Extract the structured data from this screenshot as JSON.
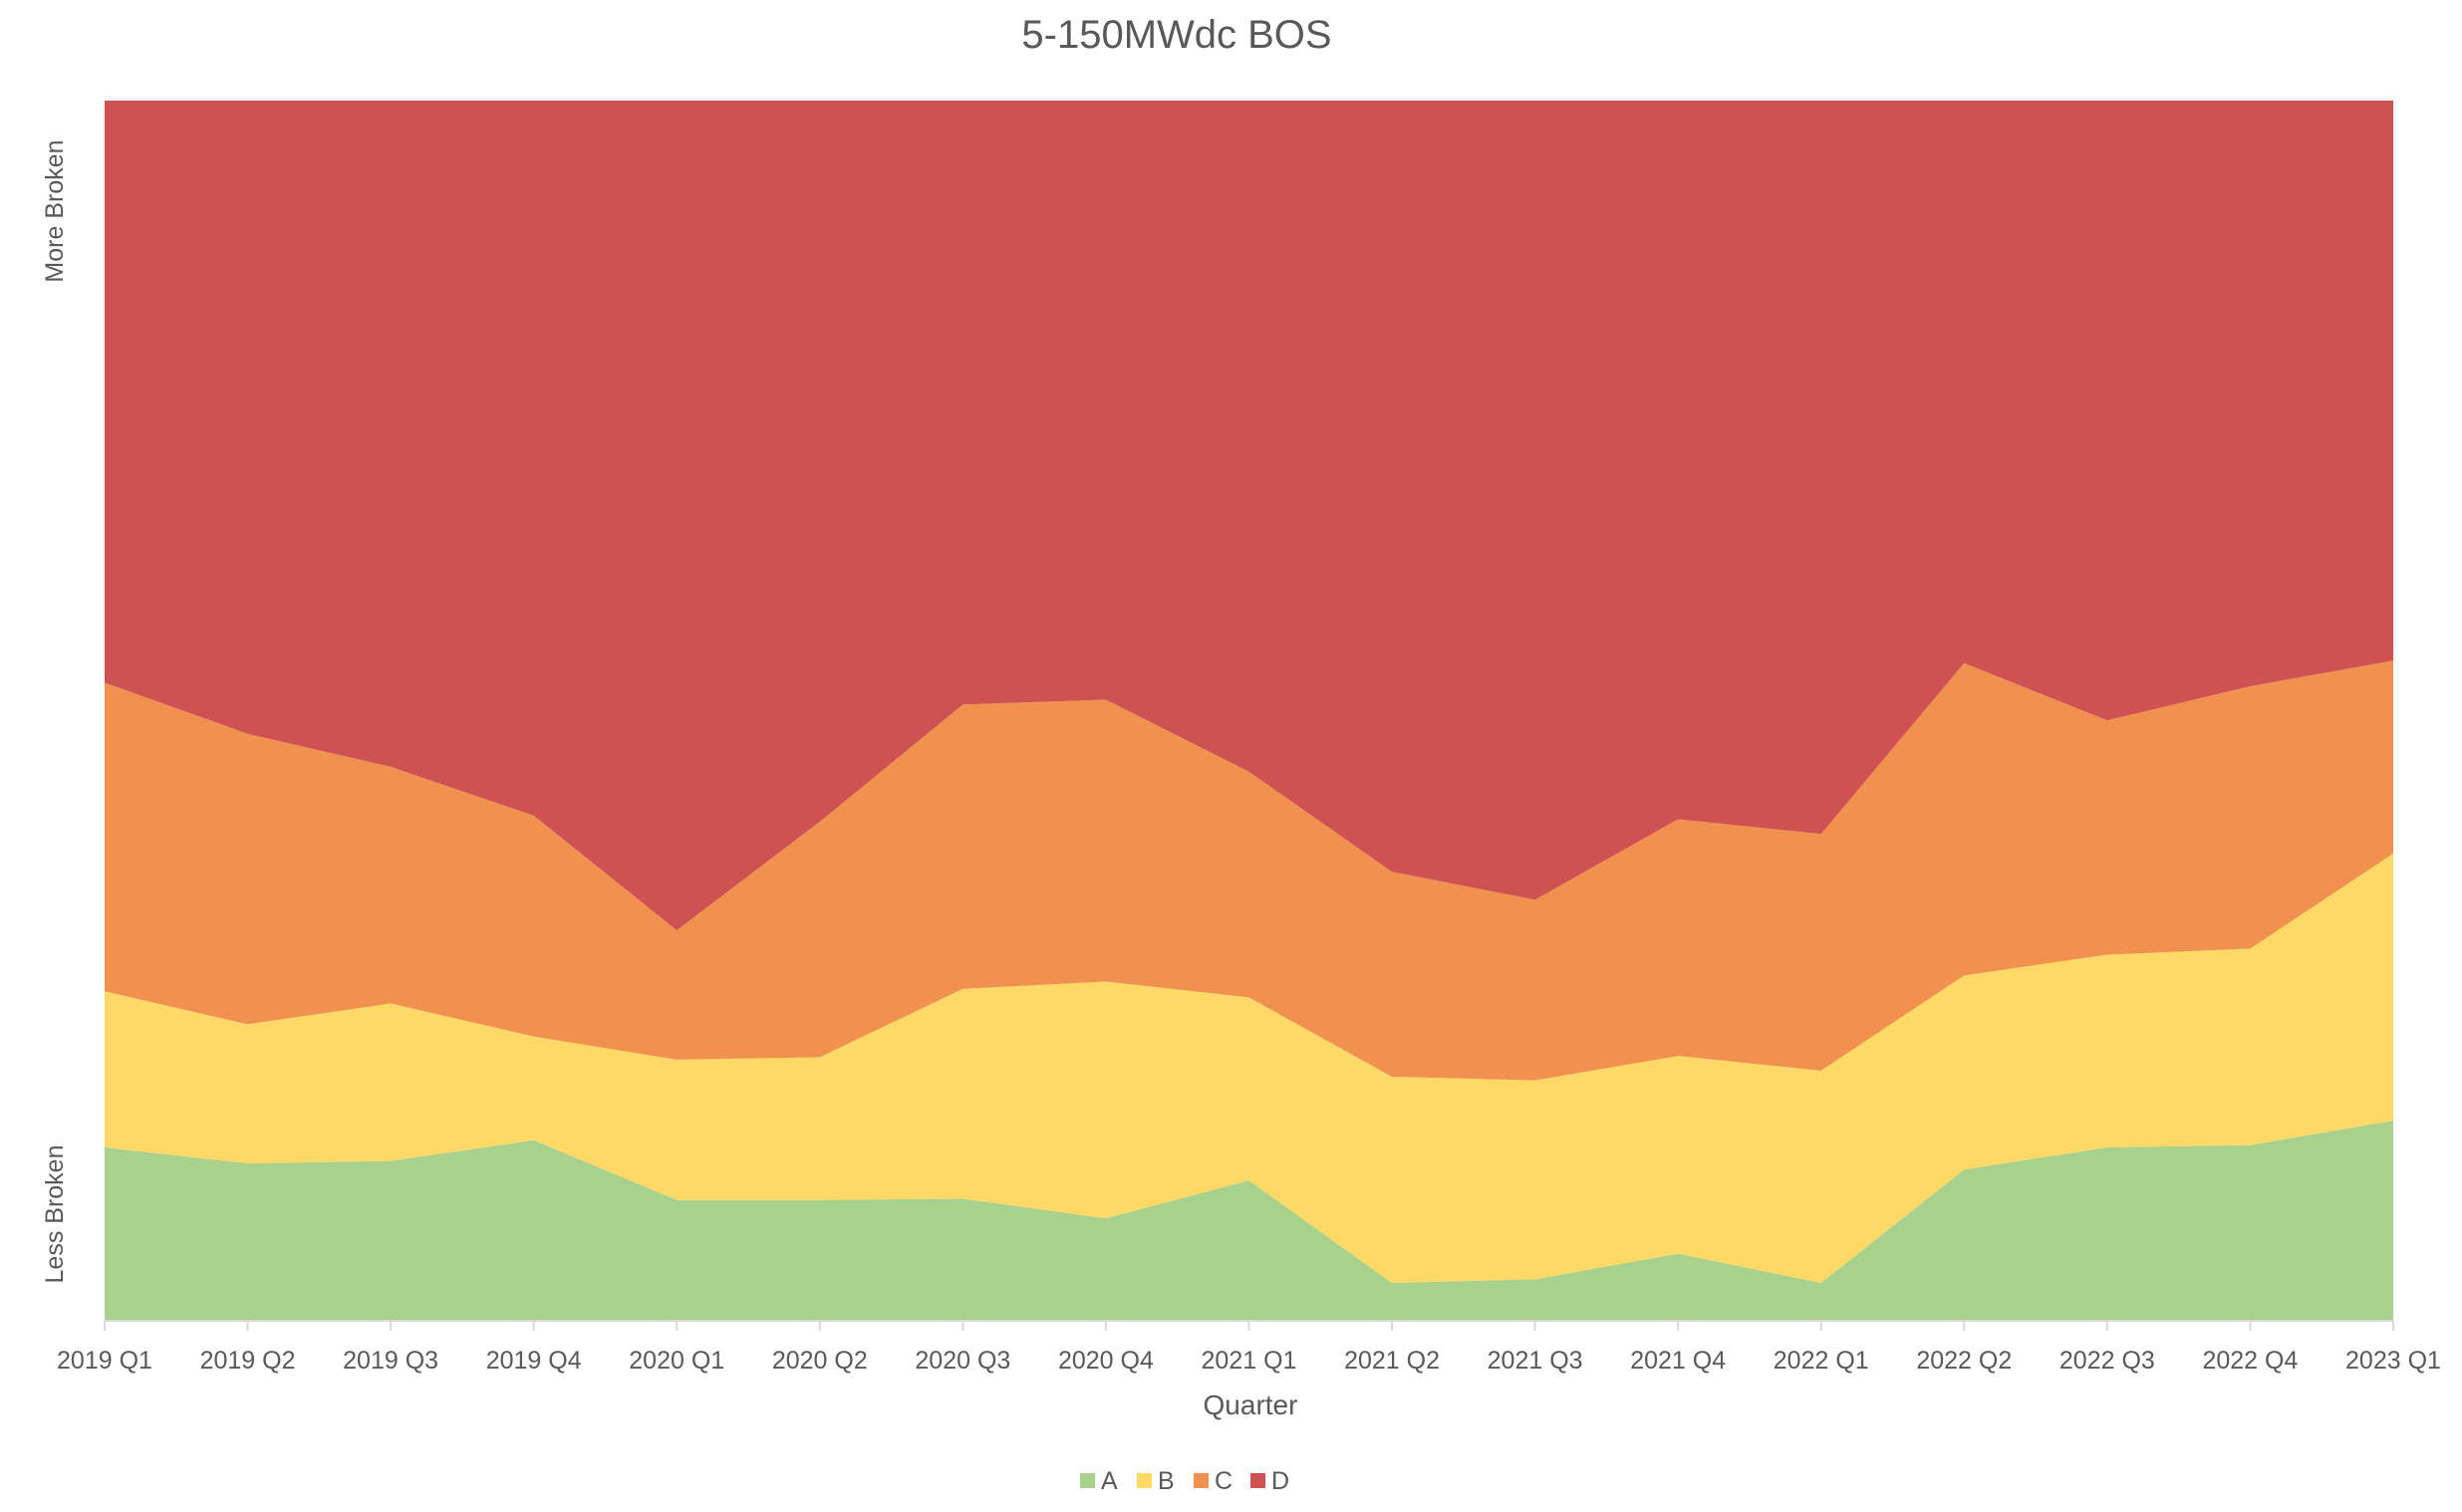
{
  "chart_data": {
    "type": "area",
    "stacked": true,
    "normalized": true,
    "title": "5-150MWdc BOS",
    "xlabel": "Quarter",
    "ylabel_top": "More Broken",
    "ylabel_bottom": "Less Broken",
    "ylim": [
      0,
      100
    ],
    "grid": false,
    "legend_position": "bottom",
    "categories": [
      "2019 Q1",
      "2019 Q2",
      "2019 Q3",
      "2019 Q4",
      "2020 Q1",
      "2020 Q2",
      "2020 Q3",
      "2020 Q4",
      "2021 Q1",
      "2021 Q2",
      "2021 Q3",
      "2021 Q4",
      "2022 Q1",
      "2022 Q2",
      "2022 Q3",
      "2022 Q4",
      "2023 Q1"
    ],
    "series": [
      {
        "name": "A",
        "color": "#a9d18e",
        "values": [
          14.2,
          12.9,
          13.1,
          14.8,
          9.9,
          9.9,
          10.0,
          8.4,
          11.5,
          3.1,
          3.4,
          5.5,
          3.1,
          12.4,
          14.2,
          14.4,
          16.4
        ]
      },
      {
        "name": "B",
        "color": "#ffd966",
        "values": [
          12.8,
          11.4,
          12.9,
          8.5,
          11.5,
          11.7,
          17.2,
          19.4,
          15.0,
          16.9,
          16.3,
          16.2,
          17.4,
          15.9,
          15.8,
          16.1,
          21.9
        ]
      },
      {
        "name": "C",
        "color": "#f0914f",
        "values": [
          25.3,
          23.8,
          19.4,
          18.1,
          10.6,
          19.3,
          23.3,
          23.1,
          18.5,
          16.8,
          14.8,
          19.4,
          19.4,
          25.6,
          19.2,
          21.5,
          15.8
        ]
      },
      {
        "name": "D",
        "color": "#cf5252",
        "values": [
          47.7,
          51.9,
          54.6,
          58.6,
          68.0,
          59.1,
          49.5,
          49.1,
          55.0,
          63.2,
          65.5,
          58.9,
          60.1,
          46.1,
          50.8,
          48.0,
          45.9
        ]
      }
    ]
  }
}
